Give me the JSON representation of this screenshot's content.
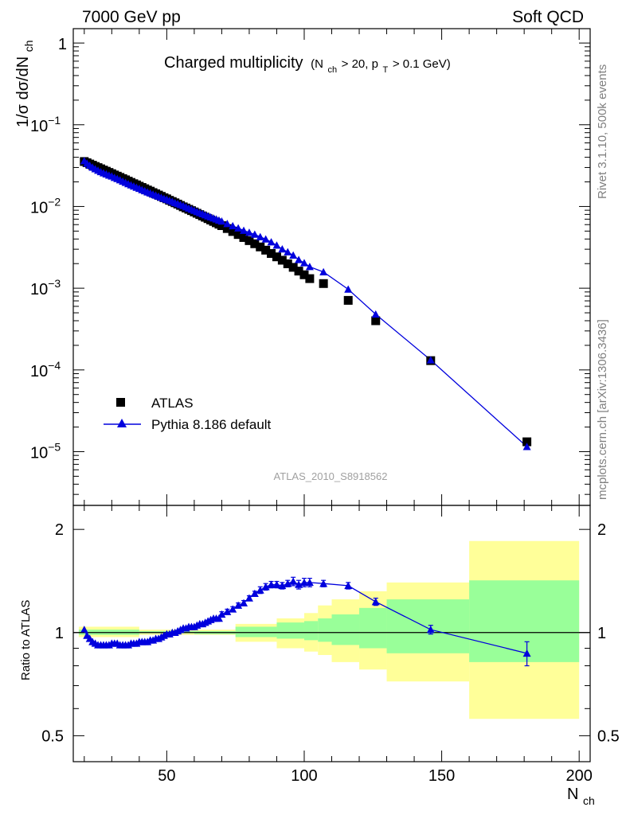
{
  "header": {
    "energy_label": "7000 GeV pp",
    "category_label": "Soft QCD"
  },
  "side_text": {
    "rivet": "Rivet 3.1.10,  500k events",
    "mcplots": "mcplots.cern.ch [arXiv:1306.3436]"
  },
  "main_title": {
    "text": "Charged multiplicity",
    "cuts_prefix": "(N",
    "cuts_sub1": "ch",
    "cuts_mid": " > 20, p",
    "cuts_sub2": "T",
    "cuts_suffix": " > 0.1 GeV)"
  },
  "analysis_id": "ATLAS_2010_S8918562",
  "legend": {
    "data_label": "ATLAS",
    "mc_label": "Pythia 8.186 default"
  },
  "axes": {
    "y_top_prefix": "1/σ dσ/dN",
    "y_top_sub": "ch",
    "y_bottom": "Ratio to ATLAS",
    "x_main": "N",
    "x_sub": "ch",
    "y_top_ticks": [
      {
        "label": "1",
        "exp": ""
      },
      {
        "label": "10",
        "exp": "−1"
      },
      {
        "label": "10",
        "exp": "−2"
      },
      {
        "label": "10",
        "exp": "−3"
      },
      {
        "label": "10",
        "exp": "−4"
      },
      {
        "label": "10",
        "exp": "−5"
      }
    ],
    "y_bottom_ticks": [
      "2",
      "1",
      "0.5"
    ],
    "x_ticks": [
      "50",
      "100",
      "150",
      "200"
    ]
  },
  "chart_data": [
    {
      "type": "scatter",
      "title": "Charged multiplicity",
      "xlabel": "N_ch",
      "ylabel": "1/σ dσ/dN_ch",
      "xlim": [
        16,
        204
      ],
      "ylim": [
        2.2e-06,
        1.5
      ],
      "yscale": "log",
      "series": [
        {
          "name": "ATLAS",
          "x": [
            20,
            21,
            22,
            23,
            24,
            25,
            26,
            27,
            28,
            29,
            30,
            31,
            32,
            33,
            34,
            35,
            36,
            37,
            38,
            39,
            40,
            41,
            42,
            43,
            44,
            45,
            46,
            47,
            48,
            49,
            50,
            51,
            52,
            53,
            54,
            55,
            56,
            57,
            58,
            59,
            60,
            61,
            62,
            63,
            64,
            65,
            66,
            67,
            68,
            69,
            70,
            72,
            74,
            76,
            78,
            80,
            82,
            84,
            86,
            88,
            90,
            92,
            94,
            96,
            98,
            100,
            102,
            107,
            116,
            126,
            146,
            181
          ],
          "values": [
            0.0355,
            0.0343,
            0.0331,
            0.032,
            0.0309,
            0.0299,
            0.0289,
            0.0279,
            0.027,
            0.0261,
            0.0252,
            0.0243,
            0.0235,
            0.0227,
            0.0219,
            0.0212,
            0.0204,
            0.0197,
            0.019,
            0.0184,
            0.0177,
            0.0171,
            0.0165,
            0.0159,
            0.0154,
            0.0148,
            0.0143,
            0.0138,
            0.0133,
            0.0128,
            0.0124,
            0.0119,
            0.0115,
            0.0111,
            0.0107,
            0.0103,
            0.0099,
            0.00958,
            0.00923,
            0.0089,
            0.00858,
            0.00826,
            0.00796,
            0.00766,
            0.00738,
            0.0071,
            0.00683,
            0.00657,
            0.00632,
            0.00607,
            0.00583,
            0.00537,
            0.00494,
            0.00454,
            0.00417,
            0.00382,
            0.0035,
            0.0032,
            0.00292,
            0.00266,
            0.00242,
            0.0022,
            0.00199,
            0.0018,
            0.00162,
            0.00146,
            0.00131,
            0.00114,
            0.00071,
            0.0004,
            0.00013,
            1.32e-05
          ]
        },
        {
          "name": "Pythia 8.186 default",
          "x": [
            20,
            21,
            22,
            23,
            24,
            25,
            26,
            27,
            28,
            29,
            30,
            31,
            32,
            33,
            34,
            35,
            36,
            37,
            38,
            39,
            40,
            41,
            42,
            43,
            44,
            45,
            46,
            47,
            48,
            49,
            50,
            51,
            52,
            53,
            54,
            55,
            56,
            57,
            58,
            59,
            60,
            61,
            62,
            63,
            64,
            65,
            66,
            67,
            68,
            69,
            70,
            72,
            74,
            76,
            78,
            80,
            82,
            84,
            86,
            88,
            90,
            92,
            94,
            96,
            98,
            100,
            102,
            107,
            116,
            126,
            146,
            181
          ],
          "values": [
            0.0362,
            0.0336,
            0.0318,
            0.0301,
            0.0288,
            0.0276,
            0.0266,
            0.0257,
            0.0249,
            0.0241,
            0.0235,
            0.0226,
            0.0219,
            0.0211,
            0.0203,
            0.0196,
            0.0189,
            0.0183,
            0.0177,
            0.0171,
            0.0166,
            0.016,
            0.0155,
            0.015,
            0.0146,
            0.0141,
            0.0137,
            0.0133,
            0.0129,
            0.0125,
            0.0122,
            0.0118,
            0.0115,
            0.0111,
            0.0108,
            0.0105,
            0.0102,
            0.00985,
            0.00952,
            0.00921,
            0.00892,
            0.00864,
            0.00837,
            0.00812,
            0.00787,
            0.00764,
            0.00741,
            0.0072,
            0.00699,
            0.00678,
            0.00659,
            0.00615,
            0.00578,
            0.00544,
            0.00508,
            0.00481,
            0.00455,
            0.00425,
            0.00398,
            0.00367,
            0.00335,
            0.00301,
            0.00277,
            0.00253,
            0.00223,
            0.00204,
            0.00183,
            0.00158,
            0.00097,
            0.00048,
            0.000132,
            1.15e-05
          ]
        }
      ]
    },
    {
      "type": "scatter",
      "title": "Ratio to ATLAS",
      "xlabel": "N_ch",
      "ylabel": "Ratio to ATLAS",
      "xlim": [
        16,
        204
      ],
      "ylim": [
        0.42,
        2.35
      ],
      "yscale": "log",
      "reference_line": 1,
      "uncertainty_bands": {
        "x_edges": [
          18,
          40,
          60,
          75,
          90,
          100,
          105,
          110,
          120,
          130,
          160,
          200
        ],
        "total_lo": [
          0.97,
          0.985,
          0.985,
          0.94,
          0.9,
          0.88,
          0.86,
          0.82,
          0.78,
          0.72,
          0.56
        ],
        "total_hi": [
          1.04,
          1.02,
          1.02,
          1.06,
          1.1,
          1.14,
          1.2,
          1.25,
          1.32,
          1.4,
          1.85
        ],
        "stat_lo": [
          0.985,
          0.995,
          0.99,
          0.97,
          0.96,
          0.95,
          0.94,
          0.92,
          0.9,
          0.87,
          0.82
        ],
        "stat_hi": [
          1.02,
          1.01,
          1.01,
          1.04,
          1.07,
          1.08,
          1.1,
          1.13,
          1.18,
          1.25,
          1.42
        ]
      },
      "series": [
        {
          "name": "Pythia 8.186 default",
          "x": [
            20,
            21,
            22,
            23,
            24,
            25,
            26,
            27,
            28,
            29,
            30,
            31,
            32,
            33,
            34,
            35,
            36,
            37,
            38,
            39,
            40,
            41,
            42,
            43,
            44,
            45,
            46,
            47,
            48,
            49,
            50,
            51,
            52,
            53,
            54,
            55,
            56,
            57,
            58,
            59,
            60,
            61,
            62,
            63,
            64,
            65,
            66,
            67,
            68,
            69,
            70,
            72,
            74,
            76,
            78,
            80,
            82,
            84,
            86,
            88,
            90,
            92,
            94,
            96,
            98,
            100,
            102,
            107,
            116,
            126,
            146,
            181
          ],
          "values": [
            1.02,
            0.98,
            0.96,
            0.94,
            0.93,
            0.92,
            0.92,
            0.92,
            0.92,
            0.92,
            0.93,
            0.93,
            0.93,
            0.92,
            0.92,
            0.92,
            0.92,
            0.93,
            0.93,
            0.93,
            0.94,
            0.94,
            0.94,
            0.94,
            0.95,
            0.95,
            0.96,
            0.96,
            0.97,
            0.98,
            0.99,
            0.99,
            1.0,
            1.0,
            1.01,
            1.02,
            1.03,
            1.03,
            1.04,
            1.04,
            1.04,
            1.05,
            1.06,
            1.06,
            1.07,
            1.08,
            1.09,
            1.1,
            1.1,
            1.1,
            1.13,
            1.15,
            1.17,
            1.2,
            1.22,
            1.26,
            1.3,
            1.33,
            1.36,
            1.38,
            1.38,
            1.37,
            1.39,
            1.41,
            1.38,
            1.4,
            1.4,
            1.39,
            1.37,
            1.23,
            1.02,
            0.87
          ],
          "err": [
            0.01,
            0.01,
            0.01,
            0.01,
            0.01,
            0.01,
            0.01,
            0.01,
            0.01,
            0.01,
            0.01,
            0.01,
            0.01,
            0.01,
            0.01,
            0.01,
            0.01,
            0.01,
            0.01,
            0.01,
            0.01,
            0.01,
            0.01,
            0.01,
            0.01,
            0.01,
            0.01,
            0.01,
            0.01,
            0.01,
            0.01,
            0.01,
            0.01,
            0.01,
            0.01,
            0.01,
            0.01,
            0.01,
            0.01,
            0.01,
            0.01,
            0.01,
            0.01,
            0.01,
            0.01,
            0.01,
            0.01,
            0.01,
            0.01,
            0.01,
            0.02,
            0.02,
            0.02,
            0.02,
            0.02,
            0.02,
            0.02,
            0.03,
            0.03,
            0.03,
            0.03,
            0.03,
            0.03,
            0.04,
            0.04,
            0.04,
            0.04,
            0.03,
            0.03,
            0.03,
            0.03,
            0.07
          ]
        }
      ]
    }
  ],
  "colors": {
    "mc": "#0000dd",
    "data": "#000000",
    "band_total": "#ffff99",
    "band_stat": "#99ff99",
    "side_text": "#808080",
    "analysis_id": "#a0a0a0"
  }
}
